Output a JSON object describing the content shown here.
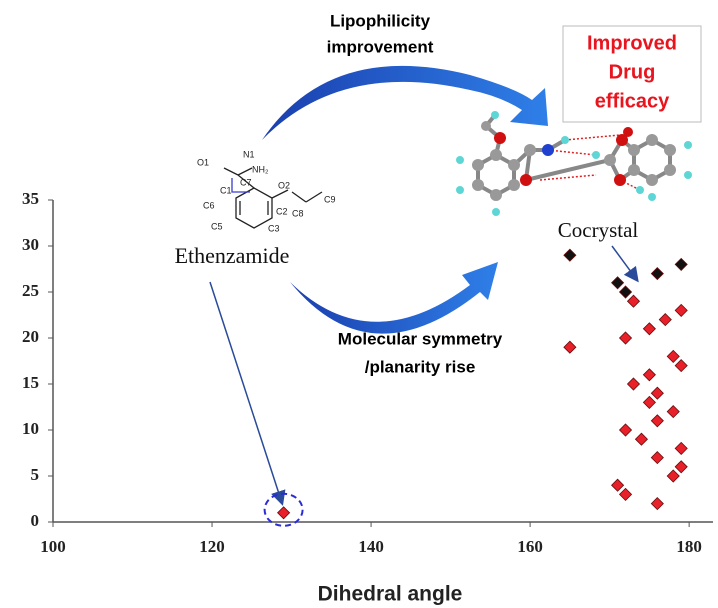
{
  "chart_data": {
    "type": "scatter",
    "xlabel": "Dihedral angle",
    "xlim": [
      100,
      183
    ],
    "xticks": [
      100,
      120,
      140,
      160,
      180
    ],
    "ylim": [
      0,
      35
    ],
    "yticks": [
      0,
      5,
      10,
      15,
      20,
      25,
      30,
      35
    ],
    "series": [
      {
        "color": "#e8202a",
        "x": [
          129,
          165,
          171,
          172,
          172,
          172,
          173,
          173,
          174,
          175,
          175,
          175,
          176,
          176,
          176,
          176,
          177,
          178,
          178,
          178,
          179,
          179,
          179,
          179
        ],
        "values": [
          1,
          19,
          4,
          3,
          10,
          20,
          24,
          15,
          9,
          13,
          16,
          21,
          14,
          11,
          7,
          2,
          22,
          12,
          18,
          5,
          17,
          23,
          8,
          6
        ]
      },
      {
        "color": "#111111",
        "x": [
          165,
          171,
          172,
          176,
          179
        ],
        "values": [
          29,
          26,
          25,
          27,
          28
        ]
      }
    ],
    "annotations": {
      "top_arrow": [
        "Lipophilicity",
        "improvement"
      ],
      "efficacy": [
        "Improved",
        "Drug",
        "efficacy"
      ],
      "bottom_arrow": [
        "Molecular symmetry",
        "/planarity rise"
      ],
      "drug": "Ethenzamide",
      "cocrystal": "Cocrystal",
      "atoms": [
        "O1",
        "N1",
        "NH₂",
        "C7",
        "C1",
        "O2",
        "C6",
        "C2",
        "C8",
        "C9",
        "C5",
        "C3"
      ]
    }
  }
}
